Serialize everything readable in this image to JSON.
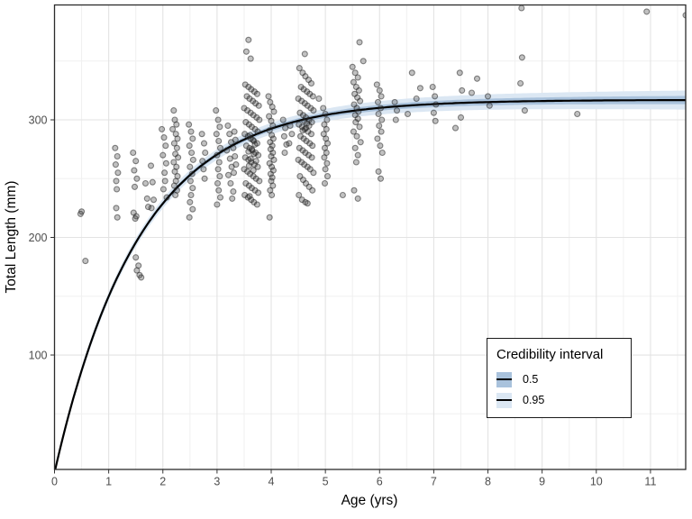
{
  "chart_data": {
    "type": "scatter",
    "title": "",
    "xlabel": "Age (yrs)",
    "ylabel": "Total Length (mm)",
    "xlim": [
      0,
      11.65
    ],
    "ylim": [
      2.7,
      397.7
    ],
    "x_ticks": [
      0,
      1,
      2,
      3,
      4,
      5,
      6,
      7,
      8,
      9,
      10,
      11
    ],
    "x_minor_ticks": [
      0.5,
      1.5,
      2.5,
      3.5,
      4.5,
      5.5,
      6.5,
      7.5,
      8.5,
      9.5,
      10.5,
      11.5
    ],
    "y_ticks": [
      100,
      200,
      300
    ],
    "y_minor_ticks": [
      50,
      150,
      250,
      350
    ],
    "grid": "major-and-minor",
    "legend": {
      "title": "Credibility interval",
      "position": "inside-right",
      "entries": [
        {
          "label": "0.5",
          "color": "#a9c2dc"
        },
        {
          "label": "0.95",
          "color": "#dbe7f3"
        }
      ]
    },
    "curve": {
      "model": "von Bertalanffy",
      "Linf": 317,
      "K": 0.64,
      "t0": 0,
      "color": "#000000"
    },
    "bands": [
      {
        "level": 0.95,
        "halfwidth_base_mm": 3.2,
        "halfwidth_slope_mm_per_yr": 0.42,
        "color": "#dbe7f3"
      },
      {
        "level": 0.5,
        "halfwidth_base_mm": 1.3,
        "halfwidth_slope_mm_per_yr": 0.19,
        "color": "#a9c2dc"
      }
    ],
    "point_style": {
      "fill": "#333333",
      "fill_opacity": 0.3,
      "stroke": "#1a1a1a",
      "stroke_opacity": 0.5,
      "radius": 3
    },
    "colors": {
      "grid_major": "#e3e3e3",
      "grid_minor": "#f0f0f0",
      "panel_border": "#2b2b2b",
      "tick_text": "#4d4d4d",
      "axis_title": "#000000"
    },
    "points": [
      [
        0.48,
        220
      ],
      [
        0.5,
        222
      ],
      [
        0.57,
        180
      ],
      [
        1.12,
        276
      ],
      [
        1.16,
        269
      ],
      [
        1.13,
        262
      ],
      [
        1.17,
        255
      ],
      [
        1.14,
        248
      ],
      [
        1.15,
        241
      ],
      [
        1.14,
        225
      ],
      [
        1.16,
        217
      ],
      [
        1.45,
        272
      ],
      [
        1.5,
        265
      ],
      [
        1.47,
        257
      ],
      [
        1.52,
        250
      ],
      [
        1.48,
        243
      ],
      [
        1.46,
        221
      ],
      [
        1.51,
        218
      ],
      [
        1.49,
        216
      ],
      [
        1.5,
        183
      ],
      [
        1.55,
        176
      ],
      [
        1.52,
        172
      ],
      [
        1.57,
        168
      ],
      [
        1.6,
        166
      ],
      [
        1.68,
        246
      ],
      [
        1.71,
        233
      ],
      [
        1.73,
        226
      ],
      [
        1.78,
        261
      ],
      [
        1.81,
        247
      ],
      [
        1.83,
        232
      ],
      [
        1.79,
        225
      ],
      [
        1.98,
        292
      ],
      [
        2.02,
        285
      ],
      [
        2.05,
        278
      ],
      [
        2.0,
        270
      ],
      [
        2.06,
        263
      ],
      [
        2.03,
        255
      ],
      [
        2.04,
        248
      ],
      [
        2.01,
        241
      ],
      [
        2.07,
        234
      ],
      [
        2.2,
        308
      ],
      [
        2.22,
        300
      ],
      [
        2.25,
        296
      ],
      [
        2.18,
        292
      ],
      [
        2.24,
        288
      ],
      [
        2.27,
        284
      ],
      [
        2.21,
        280
      ],
      [
        2.26,
        276
      ],
      [
        2.23,
        271
      ],
      [
        2.28,
        268
      ],
      [
        2.2,
        264
      ],
      [
        2.25,
        260
      ],
      [
        2.22,
        256
      ],
      [
        2.27,
        252
      ],
      [
        2.24,
        248
      ],
      [
        2.21,
        244
      ],
      [
        2.26,
        240
      ],
      [
        2.23,
        236
      ],
      [
        2.48,
        296
      ],
      [
        2.52,
        290
      ],
      [
        2.55,
        284
      ],
      [
        2.49,
        278
      ],
      [
        2.53,
        272
      ],
      [
        2.56,
        266
      ],
      [
        2.5,
        260
      ],
      [
        2.54,
        254
      ],
      [
        2.51,
        248
      ],
      [
        2.55,
        242
      ],
      [
        2.52,
        236
      ],
      [
        2.5,
        230
      ],
      [
        2.55,
        224
      ],
      [
        2.49,
        217
      ],
      [
        2.72,
        288
      ],
      [
        2.76,
        280
      ],
      [
        2.78,
        272
      ],
      [
        2.73,
        265
      ],
      [
        2.75,
        258
      ],
      [
        2.77,
        250
      ],
      [
        2.98,
        308
      ],
      [
        3.02,
        300
      ],
      [
        3.05,
        294
      ],
      [
        2.99,
        288
      ],
      [
        3.03,
        282
      ],
      [
        3.06,
        276
      ],
      [
        3.0,
        270
      ],
      [
        3.04,
        264
      ],
      [
        3.02,
        258
      ],
      [
        3.05,
        252
      ],
      [
        3.01,
        246
      ],
      [
        3.03,
        240
      ],
      [
        3.06,
        234
      ],
      [
        3.0,
        228
      ],
      [
        3.2,
        295
      ],
      [
        3.23,
        288
      ],
      [
        3.26,
        281
      ],
      [
        3.18,
        274
      ],
      [
        3.24,
        267
      ],
      [
        3.27,
        260
      ],
      [
        3.21,
        253
      ],
      [
        3.25,
        246
      ],
      [
        3.3,
        239
      ],
      [
        3.28,
        233
      ],
      [
        3.32,
        290
      ],
      [
        3.34,
        283
      ],
      [
        3.3,
        276
      ],
      [
        3.33,
        269
      ],
      [
        3.35,
        262
      ],
      [
        3.31,
        255
      ],
      [
        3.58,
        368
      ],
      [
        3.54,
        358
      ],
      [
        3.62,
        352
      ],
      [
        3.52,
        330
      ],
      [
        3.58,
        328
      ],
      [
        3.63,
        326
      ],
      [
        3.69,
        324
      ],
      [
        3.74,
        322
      ],
      [
        3.55,
        320
      ],
      [
        3.6,
        318
      ],
      [
        3.66,
        316
      ],
      [
        3.71,
        314
      ],
      [
        3.77,
        312
      ],
      [
        3.5,
        310
      ],
      [
        3.56,
        308
      ],
      [
        3.62,
        306
      ],
      [
        3.67,
        304
      ],
      [
        3.73,
        302
      ],
      [
        3.78,
        300
      ],
      [
        3.53,
        298
      ],
      [
        3.59,
        296
      ],
      [
        3.64,
        294
      ],
      [
        3.7,
        292
      ],
      [
        3.75,
        290
      ],
      [
        3.51,
        288
      ],
      [
        3.57,
        286
      ],
      [
        3.62,
        284
      ],
      [
        3.68,
        282
      ],
      [
        3.74,
        280
      ],
      [
        3.54,
        278
      ],
      [
        3.6,
        276
      ],
      [
        3.65,
        274
      ],
      [
        3.71,
        272
      ],
      [
        3.76,
        270
      ],
      [
        3.52,
        268
      ],
      [
        3.58,
        266
      ],
      [
        3.63,
        264
      ],
      [
        3.69,
        262
      ],
      [
        3.75,
        260
      ],
      [
        3.5,
        258
      ],
      [
        3.56,
        256
      ],
      [
        3.61,
        254
      ],
      [
        3.67,
        252
      ],
      [
        3.72,
        250
      ],
      [
        3.78,
        248
      ],
      [
        3.53,
        246
      ],
      [
        3.59,
        244
      ],
      [
        3.64,
        242
      ],
      [
        3.7,
        240
      ],
      [
        3.76,
        238
      ],
      [
        3.51,
        236
      ],
      [
        3.57,
        234
      ],
      [
        3.63,
        232
      ],
      [
        3.68,
        230
      ],
      [
        3.74,
        228
      ],
      [
        3.61,
        287
      ],
      [
        3.66,
        283
      ],
      [
        3.7,
        279
      ],
      [
        3.64,
        275
      ],
      [
        3.58,
        273
      ],
      [
        3.68,
        271
      ],
      [
        3.62,
        267
      ],
      [
        3.72,
        265
      ],
      [
        3.59,
        261
      ],
      [
        3.67,
        257
      ],
      [
        3.6,
        235
      ],
      [
        3.95,
        320
      ],
      [
        3.98,
        315
      ],
      [
        4.02,
        311
      ],
      [
        4.05,
        307
      ],
      [
        3.96,
        303
      ],
      [
        4.0,
        299
      ],
      [
        4.03,
        295
      ],
      [
        3.97,
        291
      ],
      [
        4.01,
        287
      ],
      [
        4.04,
        284
      ],
      [
        3.98,
        281
      ],
      [
        4.02,
        278
      ],
      [
        3.99,
        275
      ],
      [
        4.03,
        272
      ],
      [
        4.0,
        269
      ],
      [
        4.05,
        266
      ],
      [
        3.97,
        263
      ],
      [
        4.01,
        260
      ],
      [
        4.04,
        257
      ],
      [
        3.99,
        254
      ],
      [
        4.02,
        251
      ],
      [
        4.0,
        248
      ],
      [
        4.03,
        244
      ],
      [
        3.98,
        240
      ],
      [
        4.01,
        236
      ],
      [
        3.97,
        217
      ],
      [
        4.22,
        300
      ],
      [
        4.26,
        293
      ],
      [
        4.24,
        286
      ],
      [
        4.28,
        279
      ],
      [
        4.25,
        272
      ],
      [
        4.35,
        295
      ],
      [
        4.38,
        288
      ],
      [
        4.33,
        280
      ],
      [
        4.62,
        356
      ],
      [
        4.52,
        344
      ],
      [
        4.58,
        340
      ],
      [
        4.63,
        337
      ],
      [
        4.69,
        334
      ],
      [
        4.74,
        331
      ],
      [
        4.55,
        328
      ],
      [
        4.6,
        326
      ],
      [
        4.66,
        324
      ],
      [
        4.71,
        322
      ],
      [
        4.77,
        320
      ],
      [
        4.5,
        318
      ],
      [
        4.56,
        316
      ],
      [
        4.62,
        314
      ],
      [
        4.67,
        312
      ],
      [
        4.73,
        310
      ],
      [
        4.78,
        308
      ],
      [
        4.53,
        306
      ],
      [
        4.59,
        304
      ],
      [
        4.64,
        302
      ],
      [
        4.7,
        300
      ],
      [
        4.75,
        298
      ],
      [
        4.51,
        296
      ],
      [
        4.57,
        294
      ],
      [
        4.62,
        292
      ],
      [
        4.68,
        290
      ],
      [
        4.74,
        288
      ],
      [
        4.54,
        286
      ],
      [
        4.6,
        284
      ],
      [
        4.65,
        282
      ],
      [
        4.71,
        280
      ],
      [
        4.76,
        278
      ],
      [
        4.52,
        276
      ],
      [
        4.58,
        274
      ],
      [
        4.63,
        272
      ],
      [
        4.69,
        270
      ],
      [
        4.75,
        268
      ],
      [
        4.5,
        266
      ],
      [
        4.56,
        264
      ],
      [
        4.61,
        262
      ],
      [
        4.67,
        260
      ],
      [
        4.72,
        258
      ],
      [
        4.78,
        255
      ],
      [
        4.53,
        252
      ],
      [
        4.59,
        249
      ],
      [
        4.64,
        246
      ],
      [
        4.7,
        243
      ],
      [
        4.76,
        240
      ],
      [
        4.51,
        236
      ],
      [
        4.57,
        232
      ],
      [
        4.63,
        230
      ],
      [
        4.61,
        299
      ],
      [
        4.66,
        297
      ],
      [
        4.7,
        295
      ],
      [
        4.64,
        293
      ],
      [
        4.58,
        291
      ],
      [
        4.67,
        229
      ],
      [
        4.88,
        318
      ],
      [
        4.96,
        310
      ],
      [
        5.0,
        305
      ],
      [
        5.03,
        300
      ],
      [
        4.98,
        296
      ],
      [
        5.02,
        292
      ],
      [
        4.97,
        288
      ],
      [
        5.01,
        284
      ],
      [
        5.04,
        280
      ],
      [
        4.99,
        276
      ],
      [
        5.02,
        272
      ],
      [
        4.98,
        268
      ],
      [
        5.03,
        263
      ],
      [
        5.0,
        258
      ],
      [
        5.04,
        252
      ],
      [
        4.99,
        246
      ],
      [
        5.32,
        236
      ],
      [
        5.63,
        366
      ],
      [
        5.7,
        350
      ],
      [
        5.5,
        345
      ],
      [
        5.55,
        340
      ],
      [
        5.6,
        336
      ],
      [
        5.52,
        332
      ],
      [
        5.57,
        328
      ],
      [
        5.62,
        325
      ],
      [
        5.54,
        322
      ],
      [
        5.59,
        319
      ],
      [
        5.64,
        316
      ],
      [
        5.53,
        313
      ],
      [
        5.58,
        310
      ],
      [
        5.61,
        307
      ],
      [
        5.55,
        304
      ],
      [
        5.6,
        301
      ],
      [
        5.56,
        298
      ],
      [
        5.63,
        294
      ],
      [
        5.52,
        290
      ],
      [
        5.58,
        286
      ],
      [
        5.65,
        281
      ],
      [
        5.55,
        276
      ],
      [
        5.6,
        270
      ],
      [
        5.57,
        264
      ],
      [
        5.53,
        240
      ],
      [
        5.6,
        233
      ],
      [
        5.95,
        330
      ],
      [
        6.0,
        325
      ],
      [
        6.03,
        320
      ],
      [
        5.97,
        315
      ],
      [
        6.02,
        310
      ],
      [
        5.98,
        305
      ],
      [
        6.04,
        300
      ],
      [
        5.99,
        295
      ],
      [
        6.03,
        290
      ],
      [
        5.96,
        284
      ],
      [
        6.01,
        278
      ],
      [
        6.05,
        272
      ],
      [
        5.98,
        256
      ],
      [
        6.02,
        250
      ],
      [
        6.28,
        315
      ],
      [
        6.32,
        308
      ],
      [
        6.3,
        300
      ],
      [
        6.52,
        305
      ],
      [
        6.6,
        340
      ],
      [
        6.68,
        318
      ],
      [
        6.75,
        327
      ],
      [
        6.98,
        328
      ],
      [
        7.02,
        320
      ],
      [
        7.04,
        313
      ],
      [
        7.0,
        306
      ],
      [
        7.03,
        299
      ],
      [
        7.4,
        293
      ],
      [
        7.48,
        340
      ],
      [
        7.52,
        325
      ],
      [
        7.5,
        302
      ],
      [
        7.7,
        323
      ],
      [
        7.8,
        335
      ],
      [
        8.0,
        320
      ],
      [
        8.03,
        312
      ],
      [
        8.62,
        395
      ],
      [
        8.63,
        353
      ],
      [
        8.6,
        331
      ],
      [
        8.68,
        308
      ],
      [
        9.65,
        305
      ],
      [
        10.93,
        392
      ],
      [
        11.65,
        389
      ]
    ]
  }
}
